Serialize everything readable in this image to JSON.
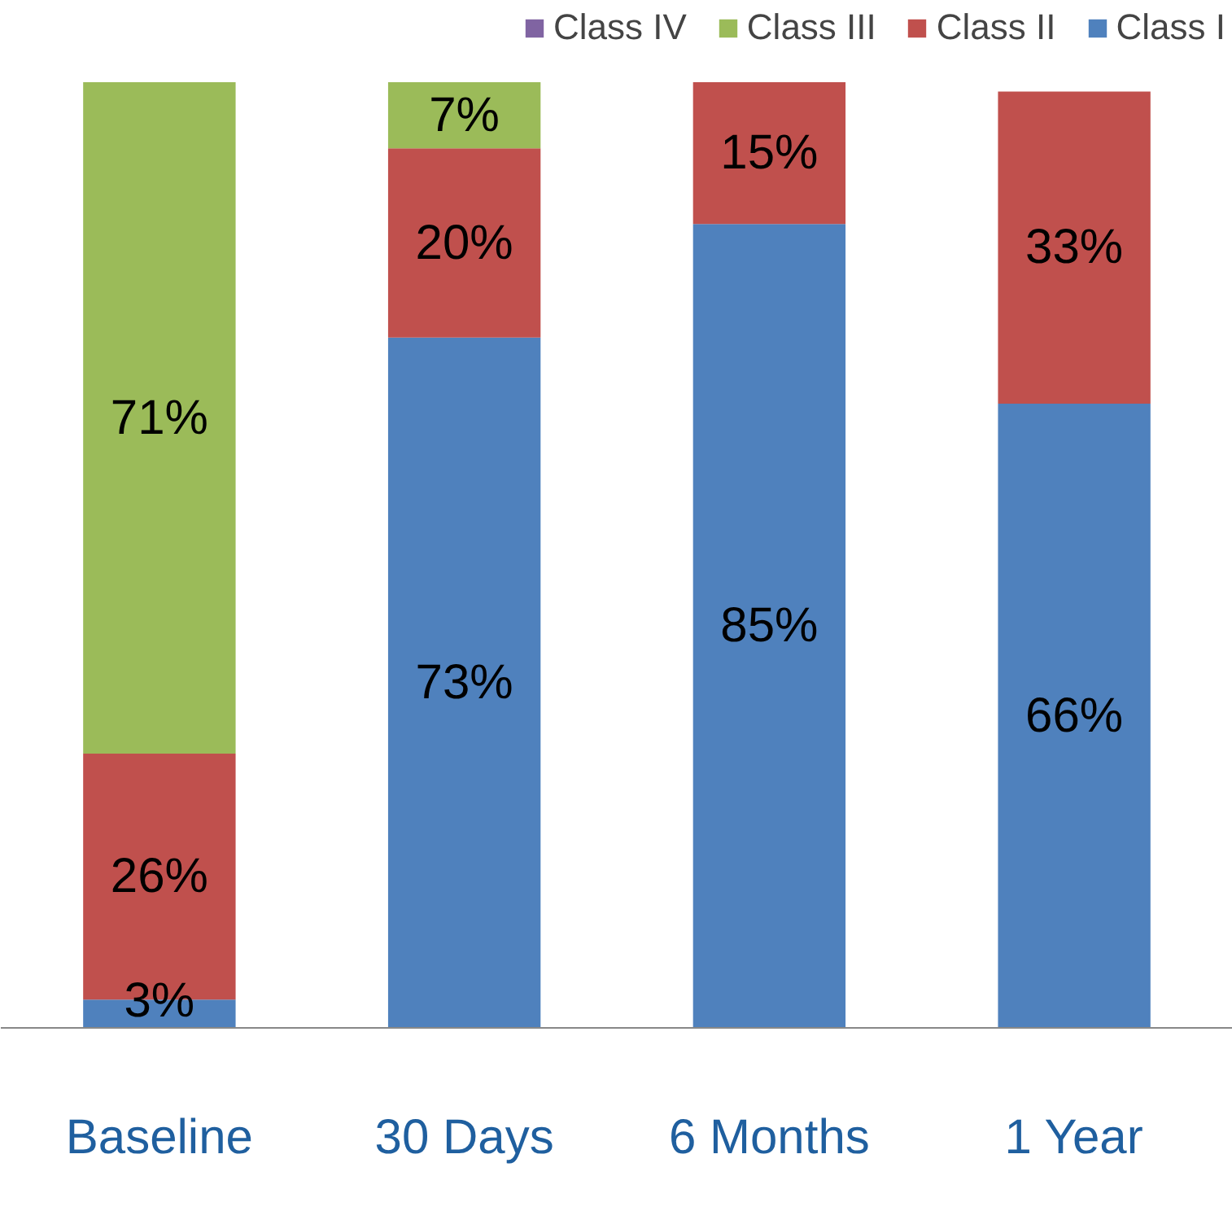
{
  "chart_data": {
    "type": "bar",
    "stacked": true,
    "categories": [
      "Baseline",
      "30 Days",
      "6 Months",
      "1 Year"
    ],
    "legend": "top",
    "data_labels": false,
    "series": [
      {
        "name": "Class I",
        "color": "#4f81bd",
        "values": [
          3,
          73,
          85,
          66
        ],
        "value_labels": [
          "3%",
          "73%",
          "85%",
          "66%"
        ]
      },
      {
        "name": "Class II",
        "color": "#c0504d",
        "values": [
          26,
          20,
          15,
          33
        ],
        "value_labels": [
          "26%",
          "20%",
          "15%",
          "33%"
        ]
      },
      {
        "name": "Class III",
        "color": "#9bbb59",
        "values": [
          71,
          7,
          null,
          null
        ],
        "value_labels": [
          "71%",
          "7%",
          null,
          null
        ]
      },
      {
        "name": "Class IV",
        "color": "#8064a2",
        "values": [
          null,
          null,
          null,
          null
        ]
      }
    ]
  }
}
